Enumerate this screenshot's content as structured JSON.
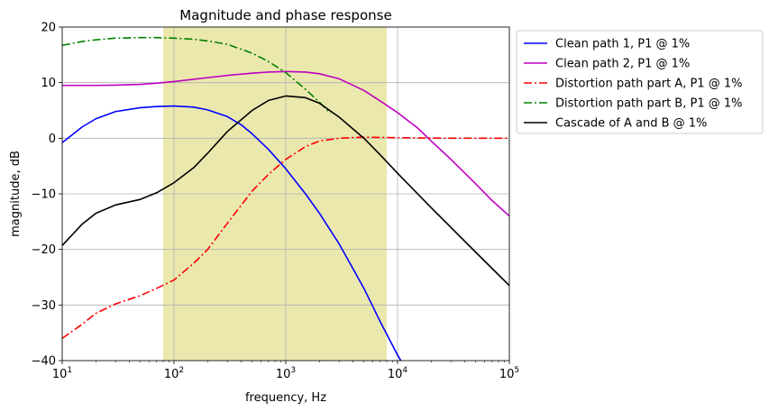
{
  "chart_data": {
    "type": "line",
    "title": "Magnitude and phase response",
    "xlabel": "frequency, Hz",
    "ylabel": "magnitude, dB",
    "xscale": "log",
    "xlim": [
      10,
      100000
    ],
    "ylim": [
      -40,
      20
    ],
    "x_ticks": [
      {
        "value": 10,
        "base": "10",
        "exp": "1"
      },
      {
        "value": 100,
        "base": "10",
        "exp": "2"
      },
      {
        "value": 1000,
        "base": "10",
        "exp": "3"
      },
      {
        "value": 10000,
        "base": "10",
        "exp": "4"
      },
      {
        "value": 100000,
        "base": "10",
        "exp": "5"
      }
    ],
    "y_ticks": [
      {
        "value": -40,
        "label": "−40"
      },
      {
        "value": -30,
        "label": "−30"
      },
      {
        "value": -20,
        "label": "−20"
      },
      {
        "value": -10,
        "label": "−10"
      },
      {
        "value": 0,
        "label": "0"
      },
      {
        "value": 10,
        "label": "10"
      },
      {
        "value": 20,
        "label": "20"
      }
    ],
    "grid": true,
    "legend_position": "outside-right",
    "shaded_band": {
      "x_start": 80,
      "x_end": 8000,
      "color": "#ebe8ae"
    },
    "series": [
      {
        "name": "Clean path 1, P1 @ 1%",
        "color": "#0000ff",
        "dash": "solid",
        "points": [
          [
            10,
            -0.8
          ],
          [
            15,
            2.0
          ],
          [
            20,
            3.5
          ],
          [
            30,
            4.8
          ],
          [
            50,
            5.5
          ],
          [
            70,
            5.7
          ],
          [
            100,
            5.8
          ],
          [
            150,
            5.6
          ],
          [
            200,
            5.1
          ],
          [
            300,
            3.9
          ],
          [
            400,
            2.4
          ],
          [
            500,
            0.8
          ],
          [
            700,
            -2.0
          ],
          [
            1000,
            -5.5
          ],
          [
            1500,
            -10.0
          ],
          [
            2000,
            -13.5
          ],
          [
            3000,
            -19.0
          ],
          [
            4000,
            -23.5
          ],
          [
            5000,
            -27.0
          ],
          [
            7000,
            -33.0
          ],
          [
            10000,
            -39.0
          ],
          [
            10700,
            -40.0
          ]
        ]
      },
      {
        "name": "Clean path 2, P1 @ 1%",
        "color": "#bf00bf",
        "dash": "solid",
        "points": [
          [
            10,
            9.5
          ],
          [
            20,
            9.5
          ],
          [
            30,
            9.55
          ],
          [
            50,
            9.7
          ],
          [
            70,
            9.9
          ],
          [
            100,
            10.2
          ],
          [
            150,
            10.6
          ],
          [
            200,
            10.9
          ],
          [
            300,
            11.3
          ],
          [
            500,
            11.7
          ],
          [
            700,
            11.9
          ],
          [
            1000,
            12.0
          ],
          [
            1500,
            11.9
          ],
          [
            2000,
            11.6
          ],
          [
            3000,
            10.7
          ],
          [
            5000,
            8.6
          ],
          [
            7000,
            6.7
          ],
          [
            10000,
            4.6
          ],
          [
            15000,
            1.9
          ],
          [
            20000,
            -0.5
          ],
          [
            30000,
            -3.8
          ],
          [
            50000,
            -8.2
          ],
          [
            70000,
            -11.2
          ],
          [
            100000,
            -14.0
          ]
        ]
      },
      {
        "name": "Distortion path part A, P1 @ 1%",
        "color": "#ff0000",
        "dash": "dashdot",
        "points": [
          [
            10,
            -36.0
          ],
          [
            15,
            -33.5
          ],
          [
            20,
            -31.5
          ],
          [
            30,
            -29.8
          ],
          [
            50,
            -28.3
          ],
          [
            70,
            -27.0
          ],
          [
            100,
            -25.5
          ],
          [
            150,
            -22.5
          ],
          [
            200,
            -20.0
          ],
          [
            300,
            -15.3
          ],
          [
            500,
            -9.5
          ],
          [
            700,
            -6.5
          ],
          [
            1000,
            -3.8
          ],
          [
            1500,
            -1.5
          ],
          [
            2000,
            -0.5
          ],
          [
            3000,
            0.0
          ],
          [
            5000,
            0.2
          ],
          [
            10000,
            0.1
          ],
          [
            30000,
            0.0
          ],
          [
            100000,
            0.0
          ]
        ]
      },
      {
        "name": "Distortion path part B, P1 @ 1%",
        "color": "#008000",
        "dash": "dashdot",
        "points": [
          [
            10,
            16.7
          ],
          [
            15,
            17.4
          ],
          [
            20,
            17.7
          ],
          [
            30,
            18.0
          ],
          [
            50,
            18.1
          ],
          [
            70,
            18.1
          ],
          [
            100,
            18.0
          ],
          [
            150,
            17.8
          ],
          [
            200,
            17.5
          ],
          [
            300,
            16.9
          ],
          [
            500,
            15.3
          ],
          [
            700,
            13.8
          ],
          [
            1000,
            11.8
          ],
          [
            1500,
            8.8
          ],
          [
            2000,
            6.5
          ],
          [
            2500,
            4.5
          ]
        ]
      },
      {
        "name": "Cascade of A and B @ 1%",
        "color": "#000000",
        "dash": "solid",
        "points": [
          [
            10,
            -19.3
          ],
          [
            15,
            -15.5
          ],
          [
            20,
            -13.5
          ],
          [
            30,
            -12.0
          ],
          [
            50,
            -11.0
          ],
          [
            70,
            -9.8
          ],
          [
            100,
            -8.0
          ],
          [
            150,
            -5.3
          ],
          [
            200,
            -2.7
          ],
          [
            300,
            1.2
          ],
          [
            500,
            5.0
          ],
          [
            700,
            6.8
          ],
          [
            1000,
            7.6
          ],
          [
            1500,
            7.3
          ],
          [
            2000,
            6.3
          ],
          [
            3000,
            3.8
          ],
          [
            5000,
            0.0
          ],
          [
            7000,
            -3.0
          ],
          [
            10000,
            -6.3
          ],
          [
            20000,
            -12.5
          ],
          [
            50000,
            -20.5
          ],
          [
            100000,
            -26.5
          ]
        ]
      }
    ]
  }
}
